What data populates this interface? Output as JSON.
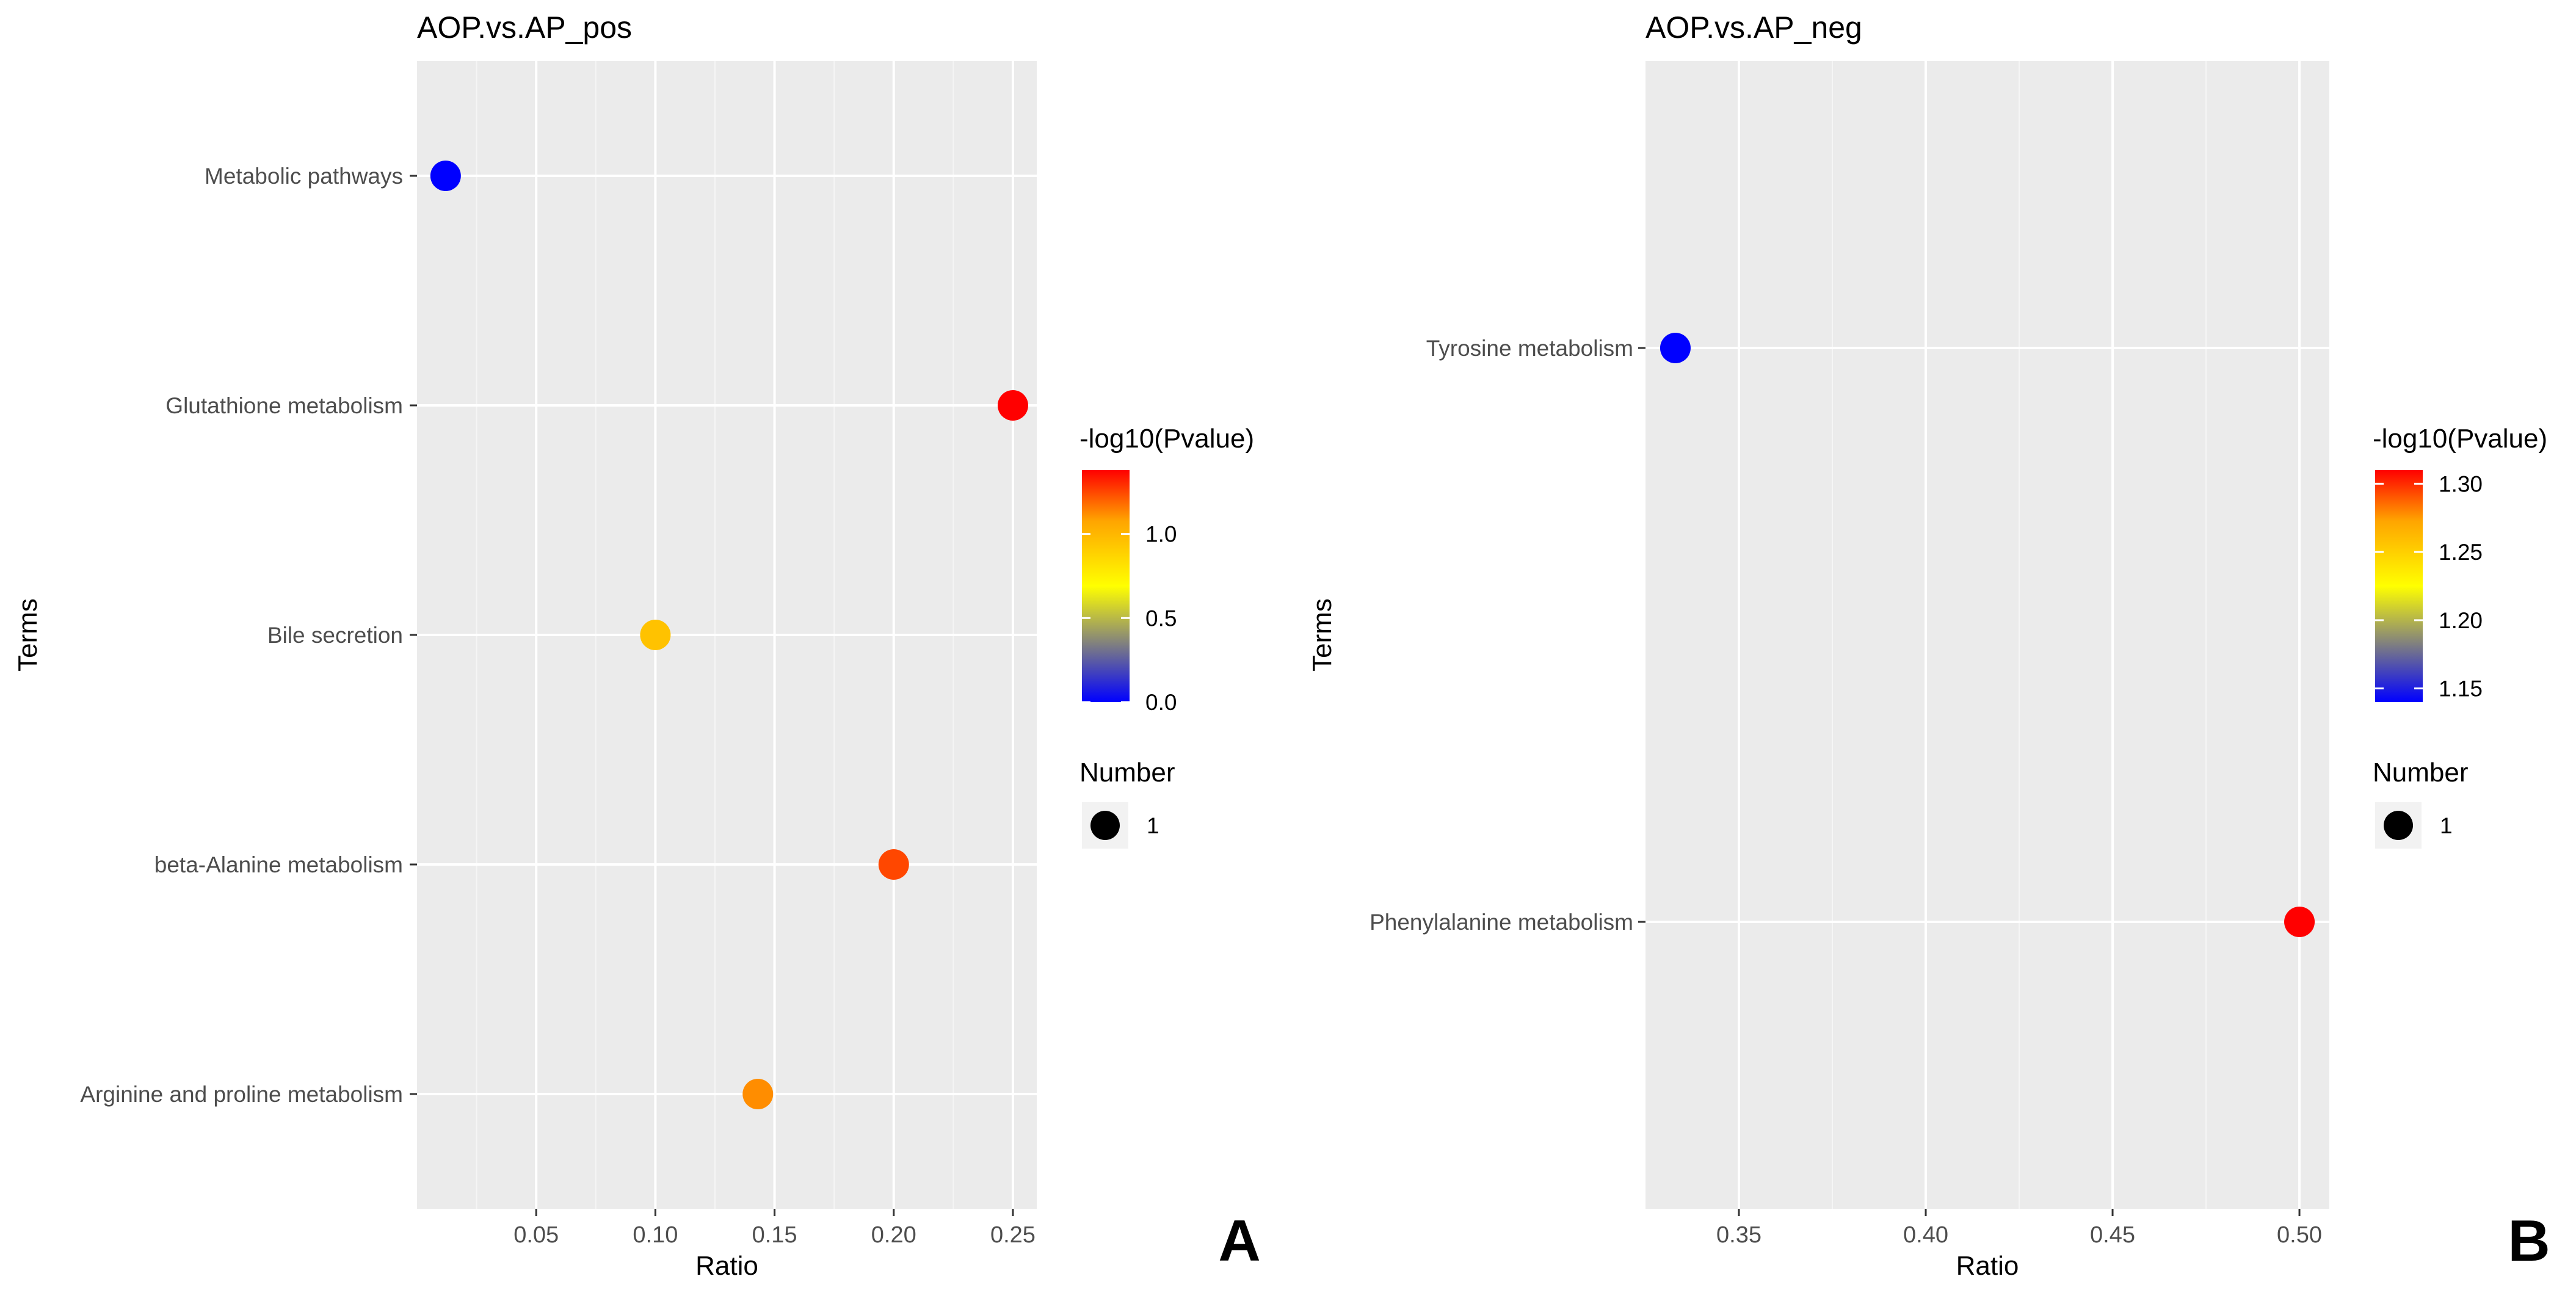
{
  "chart_data": [
    {
      "type": "scatter",
      "panel_label": "A",
      "title": "AOP.vs.AP_pos",
      "xlabel": "Ratio",
      "ylabel": "Terms",
      "xlim": [
        0.0,
        0.26
      ],
      "xticks": [
        0.05,
        0.1,
        0.15,
        0.2,
        0.25
      ],
      "xtick_labels": [
        "0.05",
        "0.10",
        "0.15",
        "0.20",
        "0.25"
      ],
      "grid": true,
      "legend_position": "right",
      "categories": [
        "Metabolic pathways",
        "Glutathione metabolism",
        "Bile secretion",
        "beta-Alanine metabolism",
        "Arginine and proline metabolism"
      ],
      "points": [
        {
          "term": "Metabolic pathways",
          "ratio": 0.012,
          "neglog10p": 0.0,
          "number": 1
        },
        {
          "term": "Glutathione metabolism",
          "ratio": 0.25,
          "neglog10p": 1.38,
          "number": 1
        },
        {
          "term": "Bile secretion",
          "ratio": 0.1,
          "neglog10p": 0.95,
          "number": 1
        },
        {
          "term": "beta-Alanine metabolism",
          "ratio": 0.2,
          "neglog10p": 1.25,
          "number": 1
        },
        {
          "term": "Arginine and proline metabolism",
          "ratio": 0.143,
          "neglog10p": 1.12,
          "number": 1
        }
      ],
      "color_legend": {
        "title": "-log10(Pvalue)",
        "min": 0.0,
        "max": 1.38,
        "ticks": [
          0.0,
          0.5,
          1.0
        ],
        "tick_labels": [
          "0.0",
          "0.5",
          "1.0"
        ]
      },
      "size_legend": {
        "title": "Number",
        "values": [
          1
        ],
        "labels": [
          "1"
        ]
      }
    },
    {
      "type": "scatter",
      "panel_label": "B",
      "title": "AOP.vs.AP_neg",
      "xlabel": "Ratio",
      "ylabel": "Terms",
      "xlim": [
        0.325,
        0.508
      ],
      "xticks": [
        0.35,
        0.4,
        0.45,
        0.5
      ],
      "xtick_labels": [
        "0.35",
        "0.40",
        "0.45",
        "0.50"
      ],
      "grid": true,
      "legend_position": "right",
      "categories": [
        "Tyrosine metabolism",
        "Phenylalanine metabolism"
      ],
      "points": [
        {
          "term": "Tyrosine metabolism",
          "ratio": 0.333,
          "neglog10p": 1.14,
          "number": 1
        },
        {
          "term": "Phenylalanine metabolism",
          "ratio": 0.5,
          "neglog10p": 1.31,
          "number": 1
        }
      ],
      "color_legend": {
        "title": "-log10(Pvalue)",
        "min": 1.14,
        "max": 1.31,
        "ticks": [
          1.15,
          1.2,
          1.25,
          1.3
        ],
        "tick_labels": [
          "1.15",
          "1.20",
          "1.25",
          "1.30"
        ]
      },
      "size_legend": {
        "title": "Number",
        "values": [
          1
        ],
        "labels": [
          "1"
        ]
      }
    }
  ]
}
